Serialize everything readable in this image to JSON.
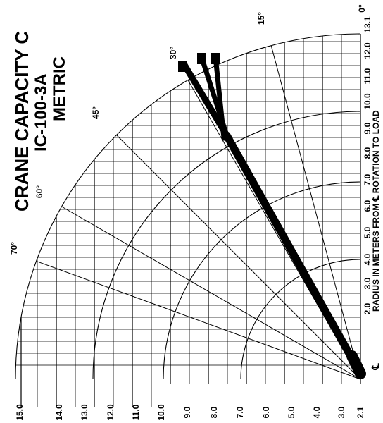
{
  "title": {
    "line1": "CRANE CAPACITY C",
    "line2": "IC-100-3A",
    "line3": "METRIC"
  },
  "radius_axis": {
    "label": "RADIUS IN METERS FROM ℄ ROTATION TO LOAD",
    "centerline_symbol": "℄",
    "ticks": [
      "2.0",
      "3.0",
      "4.0",
      "5.0",
      "6.0",
      "7.0",
      "8.0",
      "9.0",
      "10.0",
      "11.0",
      "12.0",
      "13.1"
    ]
  },
  "height_axis": {
    "ticks": [
      "2.1",
      "3.0",
      "4.0",
      "5.0",
      "6.0",
      "7.0",
      "8.0",
      "9.0",
      "10.0",
      "11.0",
      "12.0",
      "13.0",
      "14.0",
      "15.0"
    ]
  },
  "angle_labels": [
    "0°",
    "15°",
    "30°",
    "45°",
    "60°",
    "70°"
  ],
  "colors": {
    "ink": "#000000",
    "background": "#ffffff"
  }
}
